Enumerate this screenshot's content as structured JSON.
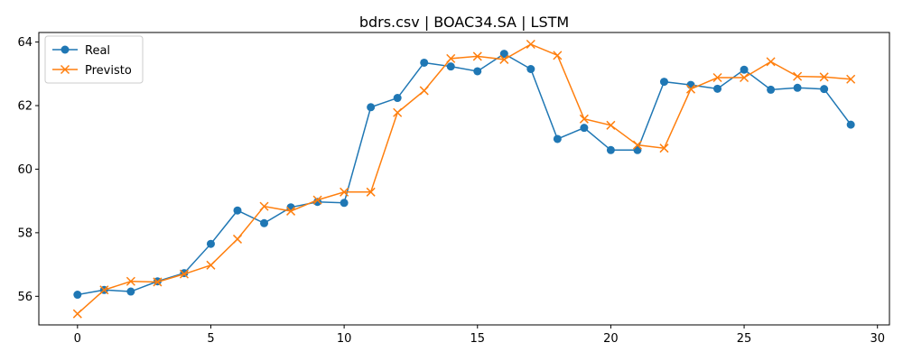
{
  "chart_data": {
    "type": "line",
    "title": "bdrs.csv | BOAC34.SA | LSTM",
    "xlabel": "",
    "ylabel": "",
    "xlim": [
      -1.45,
      30.45
    ],
    "ylim": [
      55.1,
      64.3
    ],
    "xticks": [
      0,
      5,
      10,
      15,
      20,
      25,
      30
    ],
    "yticks": [
      56,
      58,
      60,
      62,
      64
    ],
    "grid": false,
    "legend_position": "top-left",
    "x": [
      0,
      1,
      2,
      3,
      4,
      5,
      6,
      7,
      8,
      9,
      10,
      11,
      12,
      13,
      14,
      15,
      16,
      17,
      18,
      19,
      20,
      21,
      22,
      23,
      24,
      25,
      26,
      27,
      28,
      29
    ],
    "series": [
      {
        "name": "Real",
        "color": "#1f77b4",
        "marker": "circle",
        "values": [
          56.05,
          56.2,
          56.15,
          56.47,
          56.73,
          57.65,
          58.7,
          58.3,
          58.8,
          58.97,
          58.94,
          61.95,
          62.24,
          63.35,
          63.23,
          63.08,
          63.63,
          63.15,
          60.95,
          61.3,
          60.6,
          60.6,
          62.75,
          62.65,
          62.53,
          63.13,
          62.5,
          62.56,
          62.52,
          61.4
        ]
      },
      {
        "name": "Previsto",
        "color": "#ff7f0e",
        "marker": "x",
        "values": [
          55.45,
          56.2,
          56.47,
          56.45,
          56.7,
          56.98,
          57.8,
          58.83,
          58.68,
          59.03,
          59.28,
          59.28,
          61.78,
          62.47,
          63.48,
          63.55,
          63.45,
          63.93,
          63.58,
          61.58,
          61.38,
          60.76,
          60.66,
          62.52,
          62.88,
          62.88,
          63.38,
          62.92,
          62.9,
          62.83
        ]
      }
    ]
  }
}
